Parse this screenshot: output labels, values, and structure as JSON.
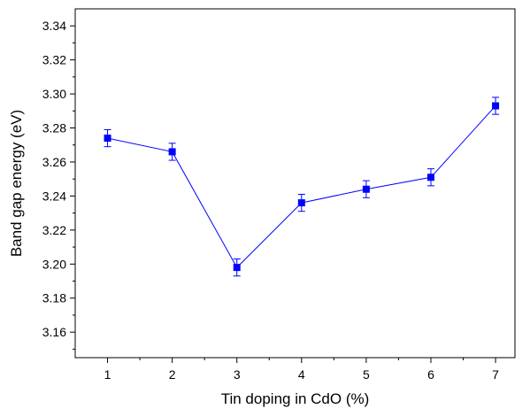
{
  "chart_data": {
    "type": "line",
    "title": "",
    "xlabel": "Tin doping in CdO (%)",
    "ylabel": "Band gap energy (eV)",
    "xlim": [
      0.5,
      7.3
    ],
    "ylim": [
      3.145,
      3.35
    ],
    "xticks": [
      1,
      2,
      3,
      4,
      5,
      6,
      7
    ],
    "xtick_labels": [
      "1",
      "2",
      "3",
      "4",
      "5",
      "6",
      "7"
    ],
    "yticks": [
      3.16,
      3.18,
      3.2,
      3.22,
      3.24,
      3.26,
      3.28,
      3.3,
      3.32,
      3.34
    ],
    "ytick_labels": [
      "3.16",
      "3.18",
      "3.20",
      "3.22",
      "3.24",
      "3.26",
      "3.28",
      "3.30",
      "3.32",
      "3.34"
    ],
    "grid": false,
    "series": [
      {
        "x": [
          1,
          2,
          3,
          4,
          5,
          6,
          7
        ],
        "y": [
          3.274,
          3.266,
          3.198,
          3.236,
          3.244,
          3.251,
          3.293
        ],
        "error": [
          0.005,
          0.005,
          0.005,
          0.005,
          0.005,
          0.005,
          0.005
        ],
        "color": "#0000ff",
        "marker": "square"
      }
    ]
  }
}
